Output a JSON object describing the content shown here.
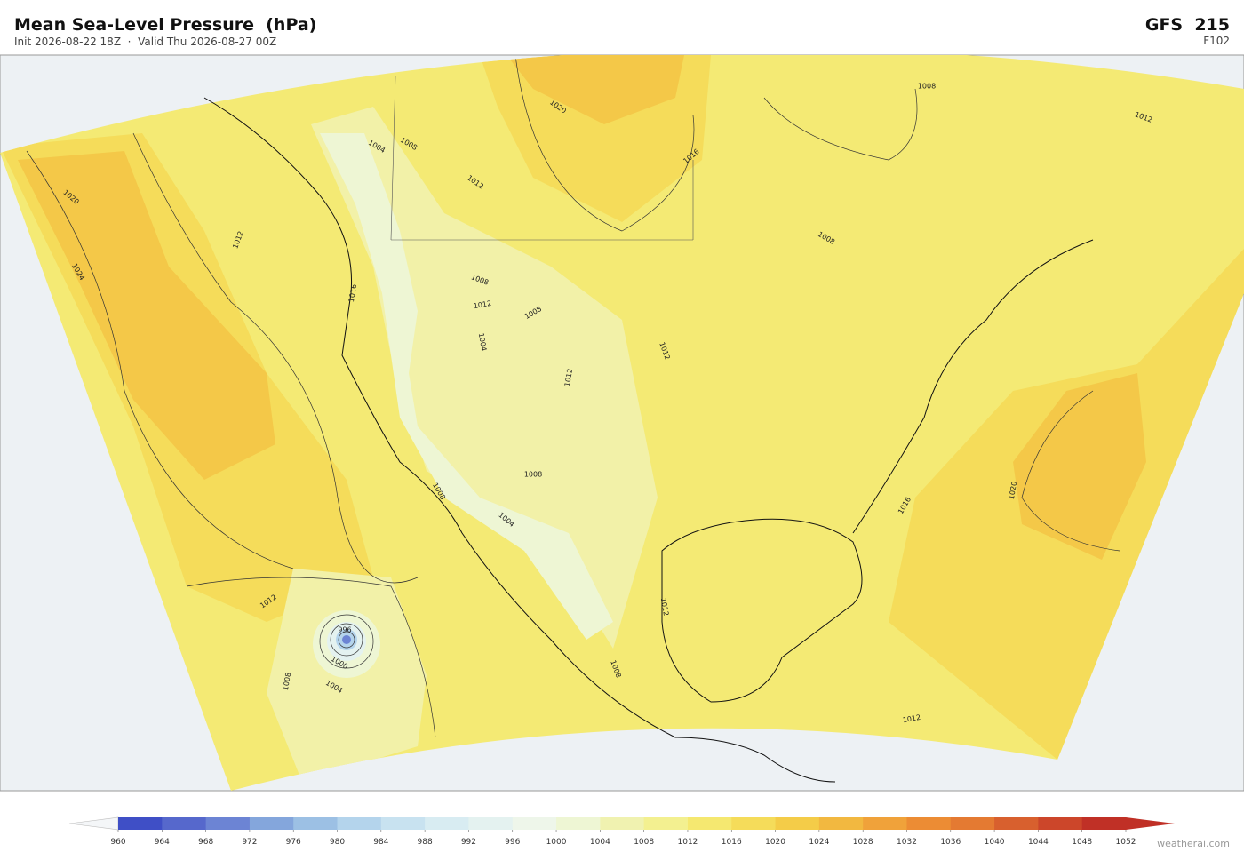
{
  "header": {
    "title": "Mean Sea-Level Pressure  (hPa)",
    "subtitle": "Init 2026-08-22 18Z  ·  Valid Thu 2026-08-27 00Z",
    "model": "GFS  215",
    "forecast_hour": "F102"
  },
  "map": {
    "contour_labels": [
      "1020",
      "1024",
      "1012",
      "1016",
      "1004",
      "1008",
      "1012",
      "1020",
      "1016",
      "1008",
      "1012",
      "1008",
      "1008",
      "1012",
      "1008",
      "1004",
      "1012",
      "1012",
      "1008",
      "1008",
      "1004",
      "1016",
      "1020",
      "1012",
      "1008",
      "996",
      "1000",
      "1004",
      "1012",
      "1008",
      "1012"
    ]
  },
  "colorbar": {
    "ticks": [
      960,
      964,
      968,
      972,
      976,
      980,
      984,
      988,
      992,
      996,
      1000,
      1004,
      1008,
      1012,
      1016,
      1020,
      1024,
      1028,
      1032,
      1036,
      1040,
      1044,
      1048,
      1052
    ],
    "colors": [
      "#3f4fc6",
      "#5668cc",
      "#6c84d4",
      "#84a6dc",
      "#9cc0e4",
      "#b4d4ec",
      "#c8e2f0",
      "#d8ecf2",
      "#e4f2f0",
      "#eef6ea",
      "#eef6d4",
      "#f0f2b0",
      "#f3f090",
      "#f5e870",
      "#f5dc5a",
      "#f4cc48",
      "#f2b840",
      "#f0a23a",
      "#ec8c34",
      "#e47a32",
      "#d8602e",
      "#cc462a",
      "#c03026"
    ]
  },
  "footer": {
    "credit": "weatherai.com"
  }
}
